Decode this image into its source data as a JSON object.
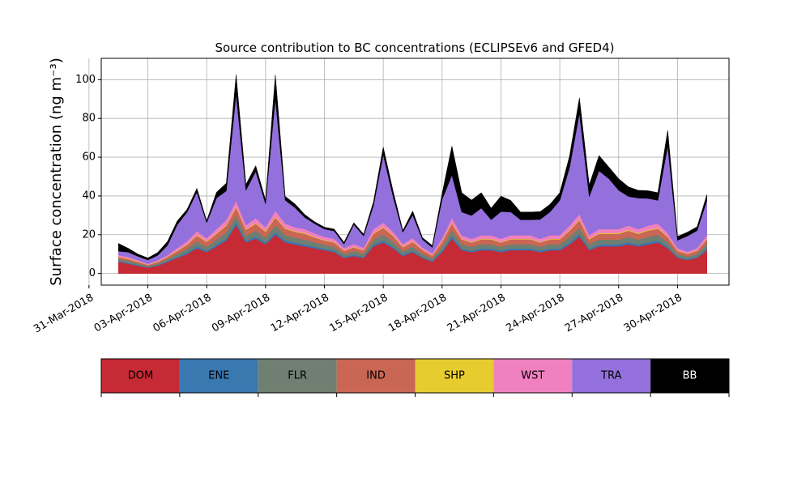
{
  "chart_data": {
    "type": "area",
    "stacked": true,
    "title": "Source contribution to BC concentrations (ECLIPSEv6 and GFED4)",
    "ylabel": "Surface concentration (ng m⁻³)",
    "xlabel": "",
    "x_axis": {
      "type": "date",
      "range": [
        "2018-03-31T15:00",
        "2018-05-02T15:00"
      ],
      "ticks": [
        "2018-03-31",
        "2018-04-03",
        "2018-04-06",
        "2018-04-09",
        "2018-04-12",
        "2018-04-15",
        "2018-04-18",
        "2018-04-21",
        "2018-04-24",
        "2018-04-27",
        "2018-04-30"
      ],
      "tick_labels": [
        "31-Mar-2018",
        "03-Apr-2018",
        "06-Apr-2018",
        "09-Apr-2018",
        "12-Apr-2018",
        "15-Apr-2018",
        "18-Apr-2018",
        "21-Apr-2018",
        "24-Apr-2018",
        "27-Apr-2018",
        "30-Apr-2018"
      ]
    },
    "y_axis": {
      "range": [
        -6,
        111
      ],
      "ticks": [
        0,
        20,
        40,
        60,
        80,
        100
      ],
      "tick_labels": [
        "0",
        "20",
        "40",
        "60",
        "80",
        "100"
      ]
    },
    "grid": true,
    "legend": {
      "placement": "bottom-colorbar"
    },
    "x": [
      "2018-04-01T12:00",
      "2018-04-02T00:00",
      "2018-04-02T12:00",
      "2018-04-03T00:00",
      "2018-04-03T12:00",
      "2018-04-04T00:00",
      "2018-04-04T12:00",
      "2018-04-05T00:00",
      "2018-04-05T12:00",
      "2018-04-06T00:00",
      "2018-04-06T12:00",
      "2018-04-07T00:00",
      "2018-04-07T12:00",
      "2018-04-08T00:00",
      "2018-04-08T12:00",
      "2018-04-09T00:00",
      "2018-04-09T12:00",
      "2018-04-10T00:00",
      "2018-04-10T12:00",
      "2018-04-11T00:00",
      "2018-04-11T12:00",
      "2018-04-12T00:00",
      "2018-04-12T12:00",
      "2018-04-13T00:00",
      "2018-04-13T12:00",
      "2018-04-14T00:00",
      "2018-04-14T12:00",
      "2018-04-15T00:00",
      "2018-04-15T12:00",
      "2018-04-16T00:00",
      "2018-04-16T12:00",
      "2018-04-17T00:00",
      "2018-04-17T12:00",
      "2018-04-18T00:00",
      "2018-04-18T12:00",
      "2018-04-19T00:00",
      "2018-04-19T12:00",
      "2018-04-20T00:00",
      "2018-04-20T12:00",
      "2018-04-21T00:00",
      "2018-04-21T12:00",
      "2018-04-22T00:00",
      "2018-04-22T12:00",
      "2018-04-23T00:00",
      "2018-04-23T12:00",
      "2018-04-24T00:00",
      "2018-04-24T12:00",
      "2018-04-25T00:00",
      "2018-04-25T12:00",
      "2018-04-26T00:00",
      "2018-04-26T12:00",
      "2018-04-27T00:00",
      "2018-04-27T12:00",
      "2018-04-28T00:00",
      "2018-04-28T12:00",
      "2018-04-29T00:00",
      "2018-04-29T12:00",
      "2018-04-30T00:00",
      "2018-04-30T12:00",
      "2018-05-01T00:00",
      "2018-05-01T12:00"
    ],
    "series": [
      {
        "name": "DOM",
        "color": "#c62a35",
        "values": [
          6,
          5,
          4,
          3,
          4,
          6,
          8,
          10,
          13,
          11,
          14,
          17,
          25,
          16,
          18,
          15,
          20,
          16,
          15,
          14,
          13,
          12,
          11,
          8,
          9,
          8,
          14,
          16,
          13,
          9,
          11,
          8,
          6,
          11,
          18,
          12,
          11,
          12,
          12,
          11,
          12,
          12,
          12,
          11,
          12,
          12,
          15,
          19,
          12,
          14,
          14,
          14,
          15,
          14,
          15,
          16,
          13,
          8,
          7,
          8,
          12
        ]
      },
      {
        "name": "ENE",
        "color": "#3a78b0",
        "values": [
          0.5,
          0.5,
          0.4,
          0.3,
          0.4,
          0.5,
          0.6,
          0.8,
          1,
          0.8,
          1,
          1.2,
          1.5,
          1,
          1.2,
          1,
          1.4,
          1.1,
          1,
          1,
          0.9,
          0.8,
          0.8,
          0.6,
          0.7,
          0.6,
          1,
          1.1,
          0.9,
          0.7,
          0.8,
          0.6,
          0.5,
          0.8,
          1.2,
          0.9,
          0.8,
          0.9,
          0.9,
          0.8,
          0.9,
          0.9,
          0.9,
          0.8,
          0.9,
          0.9,
          1.1,
          1.3,
          0.9,
          1,
          1,
          1,
          1.1,
          1,
          1.1,
          1.1,
          0.9,
          0.6,
          0.5,
          0.6,
          0.9
        ]
      },
      {
        "name": "FLR",
        "color": "#6f7f71",
        "values": [
          1,
          1,
          0.8,
          0.5,
          0.8,
          1,
          1.5,
          2,
          2.5,
          2,
          2.5,
          3,
          3.5,
          2.5,
          3,
          2.5,
          3.5,
          2.8,
          2.5,
          2.5,
          2.2,
          2,
          2,
          1.5,
          1.8,
          1.5,
          2.5,
          3,
          2.5,
          1.8,
          2,
          1.5,
          1.2,
          2,
          3,
          2.2,
          2,
          2.2,
          2.2,
          2,
          2.2,
          2.2,
          2.2,
          2,
          2.2,
          2.2,
          2.8,
          3.2,
          2.2,
          2.5,
          2.5,
          2.5,
          2.8,
          2.5,
          2.8,
          2.8,
          2.3,
          1.5,
          1.2,
          1.5,
          2.2
        ]
      },
      {
        "name": "IND",
        "color": "#ca6654",
        "values": [
          1,
          1,
          0.8,
          0.6,
          0.8,
          1,
          1.5,
          2,
          3,
          2.5,
          3,
          3.5,
          4,
          3,
          3.5,
          3,
          4,
          3.2,
          3,
          3,
          2.5,
          2.2,
          2.2,
          1.6,
          2,
          1.8,
          3,
          3.5,
          3,
          2,
          2.5,
          2,
          1.5,
          2.5,
          3.5,
          2.5,
          2.2,
          2.5,
          2.5,
          2.2,
          2.5,
          2.5,
          2.5,
          2.2,
          2.5,
          2.5,
          3.2,
          4,
          2.5,
          3,
          3,
          3,
          3.2,
          3,
          3.2,
          3.2,
          2.6,
          1.6,
          1.4,
          1.6,
          2.5
        ]
      },
      {
        "name": "SHP",
        "color": "#e6cc2f",
        "values": [
          0.2,
          0.2,
          0.2,
          0.1,
          0.2,
          0.2,
          0.3,
          0.3,
          0.4,
          0.3,
          0.4,
          0.4,
          0.5,
          0.4,
          0.4,
          0.4,
          0.5,
          0.4,
          0.4,
          0.4,
          0.3,
          0.3,
          0.3,
          0.2,
          0.3,
          0.2,
          0.4,
          0.4,
          0.4,
          0.3,
          0.3,
          0.2,
          0.2,
          0.3,
          0.5,
          0.3,
          0.3,
          0.3,
          0.3,
          0.3,
          0.3,
          0.3,
          0.3,
          0.3,
          0.3,
          0.3,
          0.4,
          0.5,
          0.3,
          0.4,
          0.4,
          0.4,
          0.4,
          0.4,
          0.4,
          0.4,
          0.3,
          0.2,
          0.2,
          0.2,
          0.3
        ]
      },
      {
        "name": "WST",
        "color": "#f080c0",
        "values": [
          0.8,
          0.8,
          0.6,
          0.5,
          0.6,
          0.8,
          1.2,
          1.5,
          2,
          1.6,
          2,
          2.5,
          3,
          2,
          2.5,
          2,
          3,
          2.3,
          2,
          2,
          1.8,
          1.6,
          1.6,
          1.2,
          1.4,
          1.2,
          2,
          2.2,
          1.8,
          1.4,
          1.6,
          1.2,
          1,
          1.6,
          2.5,
          1.8,
          1.6,
          1.8,
          1.8,
          1.6,
          1.8,
          1.8,
          1.8,
          1.6,
          1.8,
          1.8,
          2.2,
          2.6,
          1.8,
          2,
          2,
          2,
          2.2,
          2,
          2.2,
          2.2,
          1.8,
          1.2,
          1,
          1.2,
          1.8
        ]
      },
      {
        "name": "TRA",
        "color": "#9370db",
        "values": [
          2,
          2.5,
          2,
          2,
          2.5,
          5,
          12,
          15,
          20,
          8,
          16,
          15,
          55,
          18,
          24,
          12,
          58,
          12,
          10,
          6,
          5,
          4,
          4,
          2,
          10,
          6,
          12,
          35,
          18,
          6,
          12,
          4,
          3,
          20,
          22,
          12,
          12,
          14,
          8,
          14,
          12,
          8,
          8,
          10,
          12,
          18,
          30,
          52,
          20,
          30,
          26,
          20,
          15,
          16,
          14,
          12,
          45,
          4,
          8,
          9,
          18
        ]
      },
      {
        "name": "BB",
        "color": "#000000",
        "values": [
          4,
          2,
          1.2,
          1,
          1.5,
          2,
          2,
          1.5,
          2,
          1,
          3,
          4,
          10,
          3,
          3,
          2,
          12,
          2,
          2,
          1.5,
          1,
          1,
          1,
          1,
          1,
          1,
          2,
          4,
          3,
          1,
          2,
          1,
          1,
          3,
          15,
          10,
          8,
          8,
          6,
          8,
          6,
          4,
          4,
          4,
          4,
          4,
          6,
          8,
          6,
          8,
          6,
          6,
          5,
          4,
          4,
          4,
          8,
          2,
          2,
          2,
          3
        ]
      }
    ]
  }
}
